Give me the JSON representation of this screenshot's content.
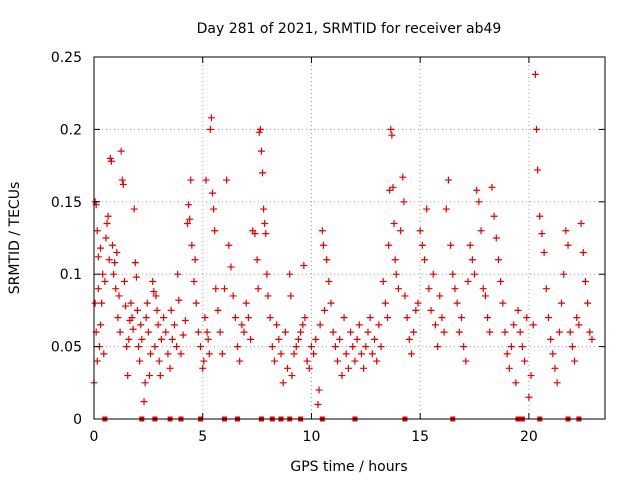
{
  "chart_data": {
    "type": "scatter",
    "title": "Day 281 of 2021, SRMTID for receiver ab49",
    "xlabel": "GPS time / hours",
    "ylabel": "SRMTID / TECUs",
    "xlim": [
      0,
      23.5
    ],
    "ylim": [
      0,
      0.25
    ],
    "x_ticks": [
      0,
      5,
      10,
      15,
      20
    ],
    "y_ticks": [
      0,
      0.05,
      0.1,
      0.15,
      0.2,
      0.25
    ],
    "x_tick_labels": [
      "0",
      "5",
      "10",
      "15",
      "20"
    ],
    "y_tick_labels": [
      "0",
      "0.05",
      "0.1",
      "0.15",
      "0.2",
      "0.25"
    ],
    "grid": true,
    "marker": "plus",
    "color": "#e60000",
    "series": [
      {
        "name": "SRMTID",
        "points": [
          [
            0.0,
            0.025
          ],
          [
            0.05,
            0.08
          ],
          [
            0.1,
            0.06
          ],
          [
            0.15,
            0.04
          ],
          [
            0.2,
            0.09
          ],
          [
            0.25,
            0.05
          ],
          [
            0.3,
            0.065
          ],
          [
            0.35,
            0.08
          ],
          [
            0.4,
            0.1
          ],
          [
            0.45,
            0.045
          ],
          [
            0.05,
            0.15
          ],
          [
            0.1,
            0.148
          ],
          [
            0.15,
            0.13
          ],
          [
            0.2,
            0.112
          ],
          [
            0.3,
            0.118
          ],
          [
            0.5,
            0.095
          ],
          [
            0.55,
            0.125
          ],
          [
            0.6,
            0.135
          ],
          [
            0.65,
            0.14
          ],
          [
            0.7,
            0.11
          ],
          [
            0.75,
            0.18
          ],
          [
            0.8,
            0.178
          ],
          [
            0.85,
            0.12
          ],
          [
            0.9,
            0.1
          ],
          [
            0.95,
            0.108
          ],
          [
            1.0,
            0.09
          ],
          [
            1.05,
            0.115
          ],
          [
            1.1,
            0.07
          ],
          [
            1.15,
            0.085
          ],
          [
            1.2,
            0.06
          ],
          [
            1.25,
            0.185
          ],
          [
            1.3,
            0.165
          ],
          [
            1.35,
            0.162
          ],
          [
            1.4,
            0.095
          ],
          [
            1.45,
            0.078
          ],
          [
            1.5,
            0.05
          ],
          [
            1.55,
            0.03
          ],
          [
            1.6,
            0.055
          ],
          [
            1.65,
            0.068
          ],
          [
            1.7,
            0.08
          ],
          [
            1.75,
            0.07
          ],
          [
            1.8,
            0.062
          ],
          [
            1.85,
            0.145
          ],
          [
            1.9,
            0.108
          ],
          [
            1.95,
            0.098
          ],
          [
            2.0,
            0.075
          ],
          [
            2.05,
            0.05
          ],
          [
            2.1,
            0.04
          ],
          [
            2.15,
            0.065
          ],
          [
            2.2,
            0.055
          ],
          [
            2.3,
            0.012
          ],
          [
            2.35,
            0.025
          ],
          [
            2.4,
            0.07
          ],
          [
            2.45,
            0.08
          ],
          [
            2.5,
            0.06
          ],
          [
            2.55,
            0.03
          ],
          [
            2.6,
            0.045
          ],
          [
            2.7,
            0.095
          ],
          [
            2.75,
            0.088
          ],
          [
            2.8,
            0.05
          ],
          [
            2.85,
            0.085
          ],
          [
            2.9,
            0.075
          ],
          [
            2.95,
            0.065
          ],
          [
            3.0,
            0.04
          ],
          [
            3.05,
            0.03
          ],
          [
            3.1,
            0.055
          ],
          [
            3.2,
            0.07
          ],
          [
            3.3,
            0.06
          ],
          [
            3.4,
            0.045
          ],
          [
            3.5,
            0.035
          ],
          [
            3.55,
            0.075
          ],
          [
            3.6,
            0.055
          ],
          [
            3.7,
            0.065
          ],
          [
            3.8,
            0.05
          ],
          [
            3.85,
            0.1
          ],
          [
            3.9,
            0.082
          ],
          [
            4.0,
            0.045
          ],
          [
            4.1,
            0.058
          ],
          [
            4.2,
            0.068
          ],
          [
            4.3,
            0.135
          ],
          [
            4.35,
            0.148
          ],
          [
            4.4,
            0.138
          ],
          [
            4.45,
            0.165
          ],
          [
            4.5,
            0.12
          ],
          [
            4.6,
            0.095
          ],
          [
            4.65,
            0.11
          ],
          [
            4.7,
            0.08
          ],
          [
            4.8,
            0.06
          ],
          [
            4.9,
            0.05
          ],
          [
            5.0,
            0.035
          ],
          [
            5.05,
            0.04
          ],
          [
            5.1,
            0.07
          ],
          [
            5.15,
            0.165
          ],
          [
            5.2,
            0.06
          ],
          [
            5.25,
            0.055
          ],
          [
            5.3,
            0.045
          ],
          [
            5.35,
            0.2
          ],
          [
            5.4,
            0.208
          ],
          [
            5.45,
            0.156
          ],
          [
            5.5,
            0.145
          ],
          [
            5.55,
            0.13
          ],
          [
            5.6,
            0.09
          ],
          [
            5.7,
            0.075
          ],
          [
            5.8,
            0.06
          ],
          [
            5.9,
            0.045
          ],
          [
            6.0,
            0.09
          ],
          [
            6.1,
            0.165
          ],
          [
            6.2,
            0.12
          ],
          [
            6.3,
            0.105
          ],
          [
            6.4,
            0.085
          ],
          [
            6.5,
            0.07
          ],
          [
            6.6,
            0.05
          ],
          [
            6.7,
            0.04
          ],
          [
            6.8,
            0.065
          ],
          [
            6.9,
            0.06
          ],
          [
            7.0,
            0.08
          ],
          [
            7.1,
            0.07
          ],
          [
            7.2,
            0.055
          ],
          [
            7.3,
            0.13
          ],
          [
            7.4,
            0.128
          ],
          [
            7.5,
            0.11
          ],
          [
            7.55,
            0.09
          ],
          [
            7.6,
            0.198
          ],
          [
            7.65,
            0.2
          ],
          [
            7.7,
            0.185
          ],
          [
            7.75,
            0.17
          ],
          [
            7.8,
            0.145
          ],
          [
            7.85,
            0.135
          ],
          [
            7.9,
            0.128
          ],
          [
            7.95,
            0.1
          ],
          [
            8.0,
            0.085
          ],
          [
            8.1,
            0.07
          ],
          [
            8.2,
            0.05
          ],
          [
            8.3,
            0.04
          ],
          [
            8.4,
            0.065
          ],
          [
            8.5,
            0.055
          ],
          [
            8.6,
            0.045
          ],
          [
            8.7,
            0.025
          ],
          [
            8.8,
            0.06
          ],
          [
            8.9,
            0.035
          ],
          [
            9.0,
            0.1
          ],
          [
            9.05,
            0.085
          ],
          [
            9.1,
            0.03
          ],
          [
            9.2,
            0.045
          ],
          [
            9.3,
            0.05
          ],
          [
            9.4,
            0.055
          ],
          [
            9.5,
            0.06
          ],
          [
            9.6,
            0.065
          ],
          [
            9.65,
            0.106
          ],
          [
            9.7,
            0.07
          ],
          [
            9.8,
            0.04
          ],
          [
            9.9,
            0.035
          ],
          [
            10.0,
            0.05
          ],
          [
            10.1,
            0.045
          ],
          [
            10.2,
            0.055
          ],
          [
            10.3,
            0.01
          ],
          [
            10.35,
            0.02
          ],
          [
            10.4,
            0.065
          ],
          [
            10.5,
            0.13
          ],
          [
            10.55,
            0.12
          ],
          [
            10.6,
            0.075
          ],
          [
            10.7,
            0.11
          ],
          [
            10.8,
            0.095
          ],
          [
            10.9,
            0.08
          ],
          [
            11.0,
            0.06
          ],
          [
            11.1,
            0.05
          ],
          [
            11.2,
            0.04
          ],
          [
            11.3,
            0.055
          ],
          [
            11.4,
            0.03
          ],
          [
            11.5,
            0.07
          ],
          [
            11.6,
            0.045
          ],
          [
            11.7,
            0.035
          ],
          [
            11.8,
            0.06
          ],
          [
            11.9,
            0.05
          ],
          [
            12.0,
            0.04
          ],
          [
            12.1,
            0.055
          ],
          [
            12.2,
            0.065
          ],
          [
            12.3,
            0.045
          ],
          [
            12.4,
            0.035
          ],
          [
            12.5,
            0.05
          ],
          [
            12.6,
            0.06
          ],
          [
            12.7,
            0.07
          ],
          [
            12.8,
            0.045
          ],
          [
            12.9,
            0.055
          ],
          [
            13.0,
            0.04
          ],
          [
            13.1,
            0.065
          ],
          [
            13.2,
            0.05
          ],
          [
            13.3,
            0.095
          ],
          [
            13.4,
            0.08
          ],
          [
            13.5,
            0.07
          ],
          [
            13.55,
            0.12
          ],
          [
            13.6,
            0.158
          ],
          [
            13.65,
            0.2
          ],
          [
            13.7,
            0.196
          ],
          [
            13.75,
            0.16
          ],
          [
            13.8,
            0.135
          ],
          [
            13.85,
            0.11
          ],
          [
            13.9,
            0.1
          ],
          [
            14.0,
            0.09
          ],
          [
            14.1,
            0.13
          ],
          [
            14.2,
            0.167
          ],
          [
            14.25,
            0.15
          ],
          [
            14.3,
            0.085
          ],
          [
            14.4,
            0.07
          ],
          [
            14.5,
            0.055
          ],
          [
            14.6,
            0.045
          ],
          [
            14.7,
            0.06
          ],
          [
            14.8,
            0.075
          ],
          [
            14.9,
            0.08
          ],
          [
            15.0,
            0.13
          ],
          [
            15.1,
            0.12
          ],
          [
            15.2,
            0.11
          ],
          [
            15.3,
            0.145
          ],
          [
            15.4,
            0.09
          ],
          [
            15.5,
            0.075
          ],
          [
            15.6,
            0.1
          ],
          [
            15.7,
            0.065
          ],
          [
            15.8,
            0.05
          ],
          [
            15.9,
            0.085
          ],
          [
            16.0,
            0.07
          ],
          [
            16.1,
            0.06
          ],
          [
            16.2,
            0.145
          ],
          [
            16.3,
            0.165
          ],
          [
            16.4,
            0.12
          ],
          [
            16.5,
            0.1
          ],
          [
            16.6,
            0.09
          ],
          [
            16.7,
            0.08
          ],
          [
            16.8,
            0.06
          ],
          [
            16.9,
            0.07
          ],
          [
            17.0,
            0.05
          ],
          [
            17.1,
            0.04
          ],
          [
            17.2,
            0.095
          ],
          [
            17.3,
            0.12
          ],
          [
            17.4,
            0.11
          ],
          [
            17.5,
            0.1
          ],
          [
            17.6,
            0.158
          ],
          [
            17.7,
            0.15
          ],
          [
            17.8,
            0.13
          ],
          [
            17.9,
            0.09
          ],
          [
            18.0,
            0.085
          ],
          [
            18.1,
            0.07
          ],
          [
            18.2,
            0.06
          ],
          [
            18.3,
            0.16
          ],
          [
            18.4,
            0.14
          ],
          [
            18.5,
            0.125
          ],
          [
            18.6,
            0.11
          ],
          [
            18.7,
            0.095
          ],
          [
            18.8,
            0.08
          ],
          [
            18.9,
            0.06
          ],
          [
            19.0,
            0.045
          ],
          [
            19.1,
            0.035
          ],
          [
            19.2,
            0.05
          ],
          [
            19.3,
            0.065
          ],
          [
            19.4,
            0.025
          ],
          [
            19.5,
            0.075
          ],
          [
            19.6,
            0.06
          ],
          [
            19.7,
            0.05
          ],
          [
            19.8,
            0.04
          ],
          [
            19.9,
            0.07
          ],
          [
            20.0,
            0.015
          ],
          [
            20.1,
            0.03
          ],
          [
            20.2,
            0.065
          ],
          [
            20.3,
            0.238
          ],
          [
            20.35,
            0.2
          ],
          [
            20.4,
            0.172
          ],
          [
            20.5,
            0.14
          ],
          [
            20.6,
            0.128
          ],
          [
            20.7,
            0.115
          ],
          [
            20.8,
            0.09
          ],
          [
            20.9,
            0.07
          ],
          [
            21.0,
            0.055
          ],
          [
            21.1,
            0.045
          ],
          [
            21.2,
            0.035
          ],
          [
            21.3,
            0.025
          ],
          [
            21.4,
            0.06
          ],
          [
            21.5,
            0.08
          ],
          [
            21.6,
            0.1
          ],
          [
            21.7,
            0.13
          ],
          [
            21.8,
            0.12
          ],
          [
            21.9,
            0.06
          ],
          [
            22.0,
            0.05
          ],
          [
            22.1,
            0.04
          ],
          [
            22.2,
            0.07
          ],
          [
            22.3,
            0.065
          ],
          [
            22.4,
            0.135
          ],
          [
            22.5,
            0.115
          ],
          [
            22.6,
            0.095
          ],
          [
            22.7,
            0.08
          ],
          [
            22.8,
            0.06
          ],
          [
            22.9,
            0.055
          ]
        ],
        "zero_points": [
          0.5,
          2.2,
          2.8,
          3.5,
          4.0,
          4.9,
          6.0,
          6.6,
          7.7,
          8.2,
          8.6,
          9.0,
          9.5,
          10.5,
          12.0,
          14.3,
          16.5,
          19.5,
          19.7,
          20.5,
          21.8,
          22.3
        ]
      }
    ]
  }
}
